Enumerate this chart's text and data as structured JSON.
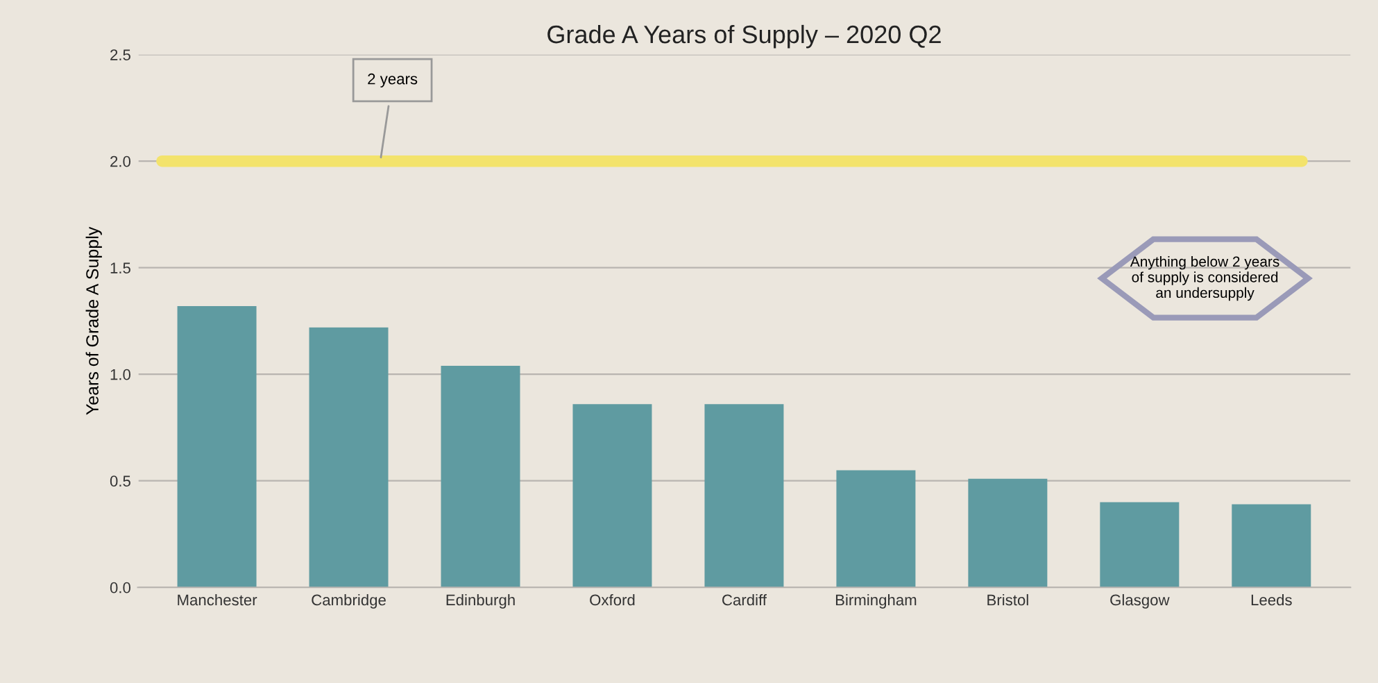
{
  "chart_data": {
    "type": "bar",
    "title": "Grade A Years of Supply – 2020 Q2",
    "ylabel": "Years of Grade A Supply",
    "categories": [
      "Manchester",
      "Cambridge",
      "Edinburgh",
      "Oxford",
      "Cardiff",
      "Birmingham",
      "Bristol",
      "Glasgow",
      "Leeds"
    ],
    "values": [
      1.32,
      1.22,
      1.04,
      0.86,
      0.86,
      0.55,
      0.51,
      0.4,
      0.39
    ],
    "color": "#5f9ba1",
    "ylim": [
      0,
      2.5
    ],
    "yticks": [
      {
        "value": 0,
        "label": "0.0"
      },
      {
        "value": 0.5,
        "label": "0.5"
      },
      {
        "value": 1,
        "label": "1.0"
      },
      {
        "value": 1.5,
        "label": "1.5"
      },
      {
        "value": 2,
        "label": "2.0"
      },
      {
        "value": 2.5,
        "label": "2.5"
      }
    ],
    "grid": "y",
    "ref_lines": [
      {
        "axis": "y",
        "value": 2,
        "label": "2 years",
        "color": "#f3e36c"
      }
    ],
    "annotations": [
      "Anything below 2 years of supply is considered an undersupply"
    ]
  }
}
